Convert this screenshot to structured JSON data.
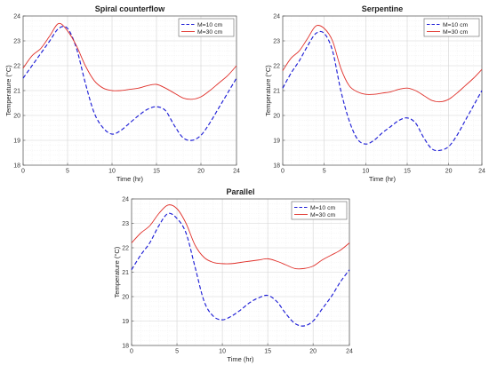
{
  "chart_data": [
    {
      "type": "line",
      "title": "Spiral counterflow",
      "xlabel": "Time (hr)",
      "ylabel": "Temperature (°C)",
      "xlim": [
        0,
        24
      ],
      "ylim": [
        18,
        24
      ],
      "xticks": [
        0,
        5,
        10,
        15,
        20,
        24
      ],
      "yticks": [
        18,
        19,
        20,
        21,
        22,
        23,
        24
      ],
      "grid": true,
      "legend_position": "top-right",
      "series": [
        {
          "name": "M=10 cm",
          "color": "#1f1fd6",
          "dash": "dashed",
          "x": [
            0,
            1,
            2,
            3,
            4,
            5,
            6,
            7,
            8,
            9,
            10,
            11,
            12,
            13,
            14,
            15,
            16,
            17,
            18,
            19,
            20,
            21,
            22,
            23,
            24
          ],
          "y": [
            21.5,
            22.0,
            22.5,
            23.0,
            23.5,
            23.5,
            22.7,
            21.3,
            20.1,
            19.5,
            19.25,
            19.4,
            19.7,
            20.0,
            20.25,
            20.35,
            20.2,
            19.6,
            19.1,
            19.0,
            19.2,
            19.7,
            20.3,
            20.9,
            21.5
          ]
        },
        {
          "name": "M=30 cm",
          "color": "#e0302a",
          "dash": "solid",
          "x": [
            0,
            1,
            2,
            3,
            4,
            5,
            6,
            7,
            8,
            9,
            10,
            11,
            12,
            13,
            14,
            15,
            16,
            17,
            18,
            19,
            20,
            21,
            22,
            23,
            24
          ],
          "y": [
            21.9,
            22.4,
            22.7,
            23.2,
            23.7,
            23.4,
            22.8,
            22.0,
            21.4,
            21.1,
            21.0,
            21.0,
            21.05,
            21.1,
            21.2,
            21.25,
            21.1,
            20.9,
            20.7,
            20.65,
            20.75,
            21.0,
            21.3,
            21.6,
            22.0
          ]
        }
      ]
    },
    {
      "type": "line",
      "title": "Serpentine",
      "xlabel": "Time (hr)",
      "ylabel": "Temperature (°C)",
      "xlim": [
        0,
        24
      ],
      "ylim": [
        18,
        24
      ],
      "xticks": [
        0,
        5,
        10,
        15,
        20,
        24
      ],
      "yticks": [
        18,
        19,
        20,
        21,
        22,
        23,
        24
      ],
      "grid": true,
      "legend_position": "top-right",
      "series": [
        {
          "name": "M=10 cm",
          "color": "#1f1fd6",
          "dash": "dashed",
          "x": [
            0,
            1,
            2,
            3,
            4,
            5,
            6,
            7,
            8,
            9,
            10,
            11,
            12,
            13,
            14,
            15,
            16,
            17,
            18,
            19,
            20,
            21,
            22,
            23,
            24
          ],
          "y": [
            21.1,
            21.7,
            22.2,
            22.8,
            23.3,
            23.3,
            22.6,
            21.0,
            19.8,
            19.05,
            18.85,
            19.0,
            19.3,
            19.55,
            19.8,
            19.9,
            19.7,
            19.1,
            18.65,
            18.6,
            18.75,
            19.2,
            19.8,
            20.4,
            21.0
          ]
        },
        {
          "name": "M=30 cm",
          "color": "#e0302a",
          "dash": "solid",
          "x": [
            0,
            1,
            2,
            3,
            4,
            5,
            6,
            7,
            8,
            9,
            10,
            11,
            12,
            13,
            14,
            15,
            16,
            17,
            18,
            19,
            20,
            21,
            22,
            23,
            24
          ],
          "y": [
            21.8,
            22.3,
            22.6,
            23.1,
            23.6,
            23.5,
            23.0,
            21.9,
            21.2,
            20.95,
            20.85,
            20.85,
            20.9,
            20.95,
            21.05,
            21.1,
            21.0,
            20.8,
            20.6,
            20.55,
            20.65,
            20.9,
            21.2,
            21.5,
            21.85
          ]
        }
      ]
    },
    {
      "type": "line",
      "title": "Parallel",
      "xlabel": "Time (hr)",
      "ylabel": "Temperature (°C)",
      "xlim": [
        0,
        24
      ],
      "ylim": [
        18,
        24
      ],
      "xticks": [
        0,
        5,
        10,
        15,
        20,
        24
      ],
      "yticks": [
        18,
        19,
        20,
        21,
        22,
        23,
        24
      ],
      "grid": true,
      "legend_position": "top-right",
      "series": [
        {
          "name": "M=10 cm",
          "color": "#1f1fd6",
          "dash": "dashed",
          "x": [
            0,
            1,
            2,
            3,
            4,
            5,
            6,
            7,
            8,
            9,
            10,
            11,
            12,
            13,
            14,
            15,
            16,
            17,
            18,
            19,
            20,
            21,
            22,
            23,
            24
          ],
          "y": [
            21.1,
            21.7,
            22.2,
            22.9,
            23.4,
            23.2,
            22.6,
            21.2,
            19.8,
            19.2,
            19.05,
            19.2,
            19.45,
            19.75,
            19.95,
            20.05,
            19.8,
            19.3,
            18.9,
            18.8,
            19.0,
            19.5,
            20.0,
            20.6,
            21.1
          ]
        },
        {
          "name": "M=30 cm",
          "color": "#e0302a",
          "dash": "solid",
          "x": [
            0,
            1,
            2,
            3,
            4,
            5,
            6,
            7,
            8,
            9,
            10,
            11,
            12,
            13,
            14,
            15,
            16,
            17,
            18,
            19,
            20,
            21,
            22,
            23,
            24
          ],
          "y": [
            22.2,
            22.6,
            22.9,
            23.4,
            23.75,
            23.6,
            23.0,
            22.1,
            21.6,
            21.4,
            21.35,
            21.35,
            21.4,
            21.45,
            21.5,
            21.55,
            21.45,
            21.3,
            21.15,
            21.15,
            21.25,
            21.5,
            21.7,
            21.9,
            22.2
          ]
        }
      ]
    }
  ]
}
